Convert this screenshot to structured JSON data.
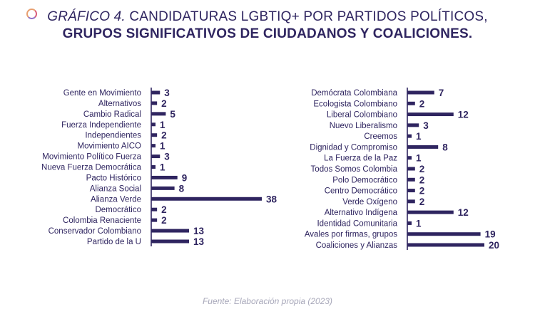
{
  "header": {
    "title_lead": "GRÁFICO 4.",
    "title_rest": "CANDIDATURAS LGBTIQ+ POR PARTIDOS POLÍTICOS,",
    "title_line2": "GRUPOS SIGNIFICATIVOS DE CIUDADANOS Y COALICIONES."
  },
  "source": "Fuente: Elaboración propia (2023)",
  "colors": {
    "bar": "#2f2560",
    "text": "#2f2560",
    "source": "#a8a8ba"
  },
  "chart_data": [
    {
      "type": "bar",
      "orientation": "horizontal",
      "categories": [
        "Gente en Movimiento",
        "Alternativos",
        "Cambio Radical",
        "Fuerza Independiente",
        "Independientes",
        "Movimiento AICO",
        "Movimiento Político Fuerza",
        "Nueva Fuerza Democrática",
        "Pacto Histórico",
        "Alianza Social",
        "Alianza Verde",
        "Democrático",
        "Colombia Renaciente",
        "Conservador Colombiano",
        "Partido de la U"
      ],
      "values": [
        3,
        2,
        5,
        1,
        2,
        1,
        3,
        1,
        9,
        8,
        38,
        2,
        2,
        13,
        13
      ],
      "xlim": [
        0,
        38
      ]
    },
    {
      "type": "bar",
      "orientation": "horizontal",
      "categories": [
        "Demócrata Colombiana",
        "Ecologista Colombiano",
        "Liberal Colombiano",
        "Nuevo Liberalismo",
        "Creemos",
        "Dignidad y Compromiso",
        "La Fuerza de la Paz",
        "Todos Somos Colombia",
        "Polo Democrático",
        "Centro Democrático",
        "Verde Oxígeno",
        "Alternativo Indígena",
        "Identidad Comunitaria",
        "Avales por firmas, grupos",
        "Coaliciones y Alianzas"
      ],
      "values": [
        7,
        2,
        12,
        3,
        1,
        8,
        1,
        2,
        2,
        2,
        2,
        12,
        1,
        19,
        20
      ],
      "xlim": [
        0,
        20
      ]
    }
  ]
}
